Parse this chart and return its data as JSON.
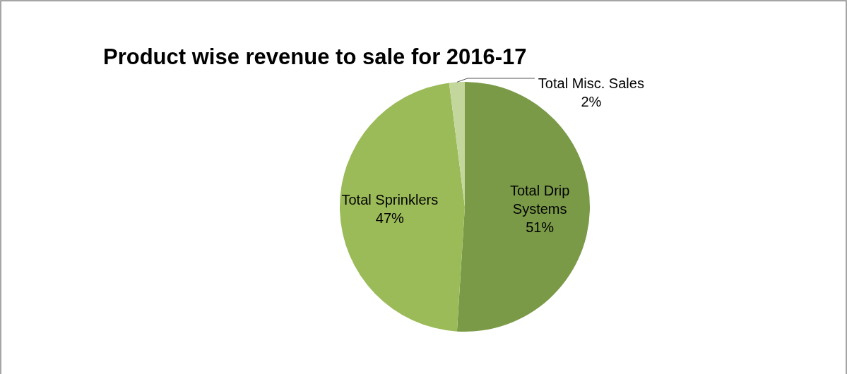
{
  "chart_data": {
    "type": "pie",
    "title": "Product wise revenue to sale for 2016-17",
    "categories": [
      "Total Drip Systems",
      "Total Sprinklers",
      "Total Misc. Sales"
    ],
    "values": [
      51,
      47,
      2
    ],
    "value_labels": [
      "51%",
      "47%",
      "2%"
    ],
    "colors": [
      "#7a9a48",
      "#9bbb59",
      "#c3d69b"
    ]
  }
}
